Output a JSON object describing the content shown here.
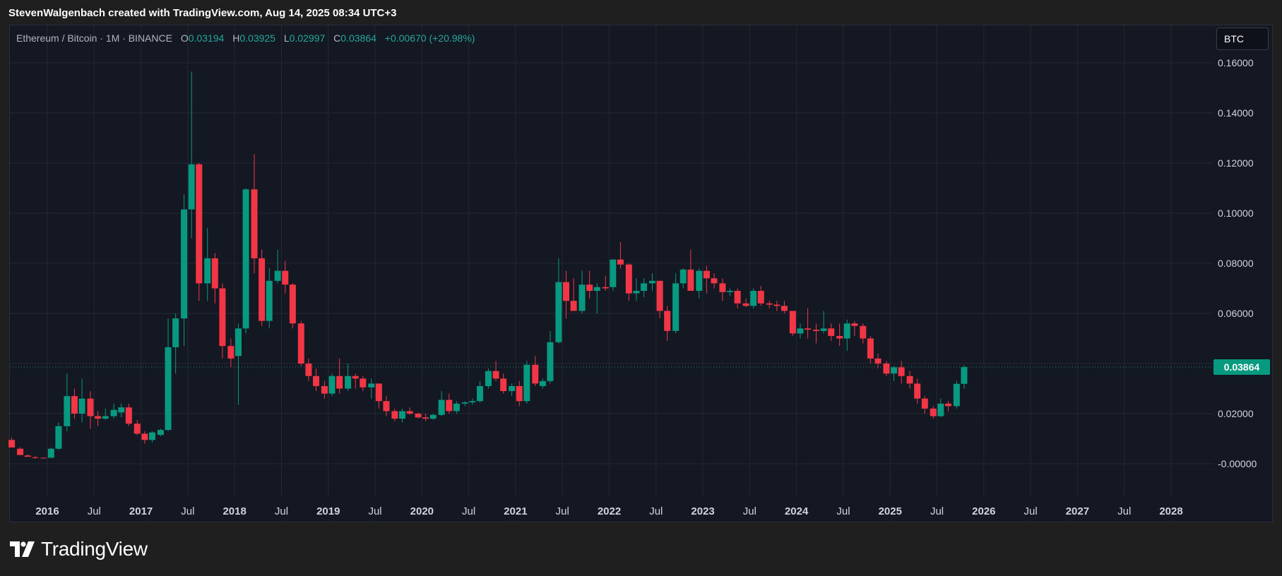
{
  "header": {
    "attribution": "StevenWalgenbach created with TradingView.com, Aug 14, 2025 08:34 UTC+3"
  },
  "legend": {
    "symbol": "Ethereum / Bitcoin · 1M · BINANCE",
    "open_label": "O",
    "open": "0.03194",
    "high_label": "H",
    "high": "0.03925",
    "low_label": "L",
    "low": "0.02997",
    "close_label": "C",
    "close": "0.03864",
    "change": "+0.00670 (+20.98%)"
  },
  "currency_button": "BTC",
  "last_price_label": "0.03864",
  "footer": {
    "brand": "TradingView",
    "logo_icon": "tradingview-logo-icon"
  },
  "colors": {
    "up": "#089981",
    "down": "#f23645",
    "background": "#141823",
    "grid": "#232733",
    "axis_text": "#d1d4dc"
  },
  "chart_data": {
    "type": "candlestick",
    "symbol": "Ethereum / Bitcoin",
    "interval": "1M",
    "exchange": "BINANCE",
    "y_ticks": [
      "0.16000",
      "0.14000",
      "0.12000",
      "0.10000",
      "0.08000",
      "0.06000",
      "0.04000",
      "0.02000",
      "-0.00000"
    ],
    "x_ticks": [
      {
        "label": "2016",
        "t": 2016.0,
        "bold": true
      },
      {
        "label": "Jul",
        "t": 2016.5,
        "bold": false
      },
      {
        "label": "2017",
        "t": 2017.0,
        "bold": true
      },
      {
        "label": "Jul",
        "t": 2017.5,
        "bold": false
      },
      {
        "label": "2018",
        "t": 2018.0,
        "bold": true
      },
      {
        "label": "Jul",
        "t": 2018.5,
        "bold": false
      },
      {
        "label": "2019",
        "t": 2019.0,
        "bold": true
      },
      {
        "label": "Jul",
        "t": 2019.5,
        "bold": false
      },
      {
        "label": "2020",
        "t": 2020.0,
        "bold": true
      },
      {
        "label": "Jul",
        "t": 2020.5,
        "bold": false
      },
      {
        "label": "2021",
        "t": 2021.0,
        "bold": true
      },
      {
        "label": "Jul",
        "t": 2021.5,
        "bold": false
      },
      {
        "label": "2022",
        "t": 2022.0,
        "bold": true
      },
      {
        "label": "Jul",
        "t": 2022.5,
        "bold": false
      },
      {
        "label": "2023",
        "t": 2023.0,
        "bold": true
      },
      {
        "label": "Jul",
        "t": 2023.5,
        "bold": false
      },
      {
        "label": "2024",
        "t": 2024.0,
        "bold": true
      },
      {
        "label": "Jul",
        "t": 2024.5,
        "bold": false
      },
      {
        "label": "2025",
        "t": 2025.0,
        "bold": true
      },
      {
        "label": "Jul",
        "t": 2025.5,
        "bold": false
      },
      {
        "label": "2026",
        "t": 2026.0,
        "bold": true
      },
      {
        "label": "Jul",
        "t": 2026.5,
        "bold": false
      },
      {
        "label": "2027",
        "t": 2027.0,
        "bold": true
      },
      {
        "label": "Jul",
        "t": 2027.5,
        "bold": false
      },
      {
        "label": "2028",
        "t": 2028.0,
        "bold": true
      }
    ],
    "ylim": [
      -0.012,
      0.163
    ],
    "xlim": [
      2015.6,
      2028.9
    ],
    "last_price": 0.03864,
    "candles": [
      {
        "t": 2015.62,
        "o": 0.0095,
        "h": 0.0105,
        "l": 0.0065,
        "c": 0.0065
      },
      {
        "t": 2015.71,
        "o": 0.006,
        "h": 0.0066,
        "l": 0.0035,
        "c": 0.0035
      },
      {
        "t": 2015.79,
        "o": 0.0033,
        "h": 0.0037,
        "l": 0.0028,
        "c": 0.0028
      },
      {
        "t": 2015.87,
        "o": 0.0026,
        "h": 0.0031,
        "l": 0.002,
        "c": 0.0023
      },
      {
        "t": 2015.96,
        "o": 0.0024,
        "h": 0.0026,
        "l": 0.0021,
        "c": 0.0023
      },
      {
        "t": 2016.04,
        "o": 0.0024,
        "h": 0.0065,
        "l": 0.0023,
        "c": 0.006
      },
      {
        "t": 2016.12,
        "o": 0.006,
        "h": 0.0165,
        "l": 0.0055,
        "c": 0.015
      },
      {
        "t": 2016.21,
        "o": 0.015,
        "h": 0.036,
        "l": 0.013,
        "c": 0.027
      },
      {
        "t": 2016.29,
        "o": 0.027,
        "h": 0.03,
        "l": 0.018,
        "c": 0.02
      },
      {
        "t": 2016.37,
        "o": 0.02,
        "h": 0.034,
        "l": 0.0165,
        "c": 0.026
      },
      {
        "t": 2016.46,
        "o": 0.026,
        "h": 0.029,
        "l": 0.014,
        "c": 0.019
      },
      {
        "t": 2016.54,
        "o": 0.019,
        "h": 0.021,
        "l": 0.015,
        "c": 0.018
      },
      {
        "t": 2016.62,
        "o": 0.018,
        "h": 0.022,
        "l": 0.0175,
        "c": 0.019
      },
      {
        "t": 2016.71,
        "o": 0.019,
        "h": 0.024,
        "l": 0.018,
        "c": 0.0215
      },
      {
        "t": 2016.79,
        "o": 0.0205,
        "h": 0.024,
        "l": 0.0185,
        "c": 0.0225
      },
      {
        "t": 2016.87,
        "o": 0.0225,
        "h": 0.024,
        "l": 0.015,
        "c": 0.016
      },
      {
        "t": 2016.96,
        "o": 0.016,
        "h": 0.0175,
        "l": 0.0115,
        "c": 0.012
      },
      {
        "t": 2017.04,
        "o": 0.012,
        "h": 0.013,
        "l": 0.008,
        "c": 0.0095
      },
      {
        "t": 2017.12,
        "o": 0.0095,
        "h": 0.013,
        "l": 0.0085,
        "c": 0.0125
      },
      {
        "t": 2017.21,
        "o": 0.0115,
        "h": 0.014,
        "l": 0.011,
        "c": 0.0135
      },
      {
        "t": 2017.29,
        "o": 0.0135,
        "h": 0.058,
        "l": 0.013,
        "c": 0.0465
      },
      {
        "t": 2017.37,
        "o": 0.0465,
        "h": 0.06,
        "l": 0.036,
        "c": 0.058
      },
      {
        "t": 2017.46,
        "o": 0.058,
        "h": 0.1075,
        "l": 0.047,
        "c": 0.1015
      },
      {
        "t": 2017.54,
        "o": 0.1015,
        "h": 0.1565,
        "l": 0.09,
        "c": 0.1195
      },
      {
        "t": 2017.62,
        "o": 0.1195,
        "h": 0.12,
        "l": 0.065,
        "c": 0.072
      },
      {
        "t": 2017.71,
        "o": 0.072,
        "h": 0.094,
        "l": 0.065,
        "c": 0.082
      },
      {
        "t": 2017.79,
        "o": 0.082,
        "h": 0.084,
        "l": 0.064,
        "c": 0.07
      },
      {
        "t": 2017.87,
        "o": 0.07,
        "h": 0.072,
        "l": 0.042,
        "c": 0.047
      },
      {
        "t": 2017.96,
        "o": 0.047,
        "h": 0.05,
        "l": 0.0385,
        "c": 0.042
      },
      {
        "t": 2018.04,
        "o": 0.043,
        "h": 0.056,
        "l": 0.0235,
        "c": 0.054
      },
      {
        "t": 2018.12,
        "o": 0.054,
        "h": 0.11,
        "l": 0.052,
        "c": 0.1095
      },
      {
        "t": 2018.21,
        "o": 0.1095,
        "h": 0.1235,
        "l": 0.076,
        "c": 0.082
      },
      {
        "t": 2018.29,
        "o": 0.082,
        "h": 0.0855,
        "l": 0.055,
        "c": 0.057
      },
      {
        "t": 2018.37,
        "o": 0.057,
        "h": 0.078,
        "l": 0.054,
        "c": 0.073
      },
      {
        "t": 2018.46,
        "o": 0.073,
        "h": 0.0855,
        "l": 0.072,
        "c": 0.077
      },
      {
        "t": 2018.54,
        "o": 0.077,
        "h": 0.081,
        "l": 0.068,
        "c": 0.0715
      },
      {
        "t": 2018.62,
        "o": 0.0715,
        "h": 0.072,
        "l": 0.054,
        "c": 0.056
      },
      {
        "t": 2018.71,
        "o": 0.056,
        "h": 0.057,
        "l": 0.039,
        "c": 0.04
      },
      {
        "t": 2018.79,
        "o": 0.04,
        "h": 0.042,
        "l": 0.033,
        "c": 0.035
      },
      {
        "t": 2018.87,
        "o": 0.035,
        "h": 0.038,
        "l": 0.029,
        "c": 0.031
      },
      {
        "t": 2018.96,
        "o": 0.031,
        "h": 0.033,
        "l": 0.026,
        "c": 0.028
      },
      {
        "t": 2019.04,
        "o": 0.028,
        "h": 0.036,
        "l": 0.027,
        "c": 0.035
      },
      {
        "t": 2019.12,
        "o": 0.035,
        "h": 0.042,
        "l": 0.028,
        "c": 0.03
      },
      {
        "t": 2019.21,
        "o": 0.03,
        "h": 0.04,
        "l": 0.029,
        "c": 0.035
      },
      {
        "t": 2019.29,
        "o": 0.035,
        "h": 0.036,
        "l": 0.03,
        "c": 0.034
      },
      {
        "t": 2019.37,
        "o": 0.034,
        "h": 0.035,
        "l": 0.029,
        "c": 0.0305
      },
      {
        "t": 2019.46,
        "o": 0.0305,
        "h": 0.034,
        "l": 0.026,
        "c": 0.032
      },
      {
        "t": 2019.54,
        "o": 0.032,
        "h": 0.032,
        "l": 0.022,
        "c": 0.025
      },
      {
        "t": 2019.62,
        "o": 0.025,
        "h": 0.027,
        "l": 0.019,
        "c": 0.021
      },
      {
        "t": 2019.71,
        "o": 0.021,
        "h": 0.022,
        "l": 0.017,
        "c": 0.018
      },
      {
        "t": 2019.79,
        "o": 0.018,
        "h": 0.022,
        "l": 0.0165,
        "c": 0.021
      },
      {
        "t": 2019.87,
        "o": 0.021,
        "h": 0.0225,
        "l": 0.0195,
        "c": 0.02
      },
      {
        "t": 2019.96,
        "o": 0.02,
        "h": 0.0205,
        "l": 0.018,
        "c": 0.0185
      },
      {
        "t": 2020.04,
        "o": 0.0185,
        "h": 0.02,
        "l": 0.017,
        "c": 0.018
      },
      {
        "t": 2020.12,
        "o": 0.018,
        "h": 0.02,
        "l": 0.0175,
        "c": 0.0195
      },
      {
        "t": 2020.21,
        "o": 0.0195,
        "h": 0.029,
        "l": 0.019,
        "c": 0.0255
      },
      {
        "t": 2020.29,
        "o": 0.0255,
        "h": 0.028,
        "l": 0.02,
        "c": 0.021
      },
      {
        "t": 2020.37,
        "o": 0.021,
        "h": 0.025,
        "l": 0.02,
        "c": 0.024
      },
      {
        "t": 2020.46,
        "o": 0.024,
        "h": 0.025,
        "l": 0.023,
        "c": 0.0245
      },
      {
        "t": 2020.54,
        "o": 0.0245,
        "h": 0.026,
        "l": 0.0235,
        "c": 0.025
      },
      {
        "t": 2020.62,
        "o": 0.025,
        "h": 0.033,
        "l": 0.0245,
        "c": 0.031
      },
      {
        "t": 2020.71,
        "o": 0.031,
        "h": 0.038,
        "l": 0.03,
        "c": 0.037
      },
      {
        "t": 2020.79,
        "o": 0.037,
        "h": 0.041,
        "l": 0.033,
        "c": 0.034
      },
      {
        "t": 2020.87,
        "o": 0.034,
        "h": 0.036,
        "l": 0.028,
        "c": 0.029
      },
      {
        "t": 2020.96,
        "o": 0.029,
        "h": 0.032,
        "l": 0.027,
        "c": 0.031
      },
      {
        "t": 2021.04,
        "o": 0.031,
        "h": 0.033,
        "l": 0.023,
        "c": 0.025
      },
      {
        "t": 2021.12,
        "o": 0.025,
        "h": 0.041,
        "l": 0.024,
        "c": 0.0395
      },
      {
        "t": 2021.21,
        "o": 0.0395,
        "h": 0.043,
        "l": 0.031,
        "c": 0.032
      },
      {
        "t": 2021.29,
        "o": 0.031,
        "h": 0.034,
        "l": 0.03,
        "c": 0.033
      },
      {
        "t": 2021.37,
        "o": 0.033,
        "h": 0.053,
        "l": 0.032,
        "c": 0.0485
      },
      {
        "t": 2021.46,
        "o": 0.0485,
        "h": 0.082,
        "l": 0.048,
        "c": 0.0725
      },
      {
        "t": 2021.54,
        "o": 0.0725,
        "h": 0.077,
        "l": 0.058,
        "c": 0.065
      },
      {
        "t": 2021.62,
        "o": 0.065,
        "h": 0.074,
        "l": 0.061,
        "c": 0.061
      },
      {
        "t": 2021.71,
        "o": 0.061,
        "h": 0.077,
        "l": 0.06,
        "c": 0.0715
      },
      {
        "t": 2021.79,
        "o": 0.0715,
        "h": 0.077,
        "l": 0.066,
        "c": 0.069
      },
      {
        "t": 2021.87,
        "o": 0.069,
        "h": 0.072,
        "l": 0.06,
        "c": 0.0705
      },
      {
        "t": 2021.96,
        "o": 0.0705,
        "h": 0.075,
        "l": 0.069,
        "c": 0.07
      },
      {
        "t": 2022.04,
        "o": 0.0705,
        "h": 0.0815,
        "l": 0.069,
        "c": 0.0815
      },
      {
        "t": 2022.12,
        "o": 0.0815,
        "h": 0.0885,
        "l": 0.078,
        "c": 0.0795
      },
      {
        "t": 2022.21,
        "o": 0.0795,
        "h": 0.08,
        "l": 0.065,
        "c": 0.068
      },
      {
        "t": 2022.29,
        "o": 0.068,
        "h": 0.074,
        "l": 0.065,
        "c": 0.069
      },
      {
        "t": 2022.37,
        "o": 0.069,
        "h": 0.074,
        "l": 0.0665,
        "c": 0.072
      },
      {
        "t": 2022.46,
        "o": 0.072,
        "h": 0.076,
        "l": 0.069,
        "c": 0.073
      },
      {
        "t": 2022.54,
        "o": 0.073,
        "h": 0.073,
        "l": 0.058,
        "c": 0.061
      },
      {
        "t": 2022.62,
        "o": 0.061,
        "h": 0.063,
        "l": 0.049,
        "c": 0.053
      },
      {
        "t": 2022.71,
        "o": 0.053,
        "h": 0.076,
        "l": 0.052,
        "c": 0.072
      },
      {
        "t": 2022.79,
        "o": 0.072,
        "h": 0.078,
        "l": 0.07,
        "c": 0.0775
      },
      {
        "t": 2022.87,
        "o": 0.0775,
        "h": 0.0855,
        "l": 0.069,
        "c": 0.069
      },
      {
        "t": 2022.96,
        "o": 0.069,
        "h": 0.078,
        "l": 0.066,
        "c": 0.077
      },
      {
        "t": 2023.04,
        "o": 0.077,
        "h": 0.079,
        "l": 0.068,
        "c": 0.074
      },
      {
        "t": 2023.12,
        "o": 0.074,
        "h": 0.076,
        "l": 0.07,
        "c": 0.072
      },
      {
        "t": 2023.21,
        "o": 0.072,
        "h": 0.074,
        "l": 0.065,
        "c": 0.0685
      },
      {
        "t": 2023.29,
        "o": 0.0685,
        "h": 0.07,
        "l": 0.067,
        "c": 0.069
      },
      {
        "t": 2023.37,
        "o": 0.069,
        "h": 0.07,
        "l": 0.062,
        "c": 0.064
      },
      {
        "t": 2023.46,
        "o": 0.064,
        "h": 0.066,
        "l": 0.0625,
        "c": 0.063
      },
      {
        "t": 2023.54,
        "o": 0.063,
        "h": 0.07,
        "l": 0.062,
        "c": 0.069
      },
      {
        "t": 2023.62,
        "o": 0.069,
        "h": 0.071,
        "l": 0.063,
        "c": 0.064
      },
      {
        "t": 2023.71,
        "o": 0.064,
        "h": 0.065,
        "l": 0.062,
        "c": 0.0635
      },
      {
        "t": 2023.79,
        "o": 0.0635,
        "h": 0.065,
        "l": 0.061,
        "c": 0.063
      },
      {
        "t": 2023.87,
        "o": 0.063,
        "h": 0.065,
        "l": 0.06,
        "c": 0.061
      },
      {
        "t": 2023.96,
        "o": 0.061,
        "h": 0.061,
        "l": 0.051,
        "c": 0.052
      },
      {
        "t": 2024.04,
        "o": 0.052,
        "h": 0.056,
        "l": 0.05,
        "c": 0.054
      },
      {
        "t": 2024.12,
        "o": 0.054,
        "h": 0.062,
        "l": 0.05,
        "c": 0.0535
      },
      {
        "t": 2024.21,
        "o": 0.0535,
        "h": 0.056,
        "l": 0.048,
        "c": 0.053
      },
      {
        "t": 2024.29,
        "o": 0.053,
        "h": 0.061,
        "l": 0.052,
        "c": 0.054
      },
      {
        "t": 2024.37,
        "o": 0.054,
        "h": 0.056,
        "l": 0.049,
        "c": 0.051
      },
      {
        "t": 2024.46,
        "o": 0.051,
        "h": 0.056,
        "l": 0.047,
        "c": 0.05
      },
      {
        "t": 2024.54,
        "o": 0.05,
        "h": 0.0575,
        "l": 0.045,
        "c": 0.056
      },
      {
        "t": 2024.62,
        "o": 0.056,
        "h": 0.057,
        "l": 0.051,
        "c": 0.055
      },
      {
        "t": 2024.71,
        "o": 0.055,
        "h": 0.056,
        "l": 0.048,
        "c": 0.05
      },
      {
        "t": 2024.79,
        "o": 0.05,
        "h": 0.051,
        "l": 0.04,
        "c": 0.042
      },
      {
        "t": 2024.87,
        "o": 0.042,
        "h": 0.044,
        "l": 0.038,
        "c": 0.04
      },
      {
        "t": 2024.96,
        "o": 0.04,
        "h": 0.041,
        "l": 0.035,
        "c": 0.036
      },
      {
        "t": 2025.04,
        "o": 0.036,
        "h": 0.039,
        "l": 0.033,
        "c": 0.0385
      },
      {
        "t": 2025.12,
        "o": 0.0385,
        "h": 0.041,
        "l": 0.032,
        "c": 0.035
      },
      {
        "t": 2025.21,
        "o": 0.035,
        "h": 0.037,
        "l": 0.03,
        "c": 0.032
      },
      {
        "t": 2025.29,
        "o": 0.032,
        "h": 0.034,
        "l": 0.024,
        "c": 0.026
      },
      {
        "t": 2025.37,
        "o": 0.026,
        "h": 0.027,
        "l": 0.02,
        "c": 0.022
      },
      {
        "t": 2025.46,
        "o": 0.022,
        "h": 0.023,
        "l": 0.018,
        "c": 0.019
      },
      {
        "t": 2025.54,
        "o": 0.019,
        "h": 0.026,
        "l": 0.0185,
        "c": 0.024
      },
      {
        "t": 2025.62,
        "o": 0.024,
        "h": 0.025,
        "l": 0.021,
        "c": 0.023
      },
      {
        "t": 2025.71,
        "o": 0.023,
        "h": 0.033,
        "l": 0.022,
        "c": 0.0319
      },
      {
        "t": 2025.79,
        "o": 0.0319,
        "h": 0.0393,
        "l": 0.03,
        "c": 0.0386
      }
    ]
  }
}
